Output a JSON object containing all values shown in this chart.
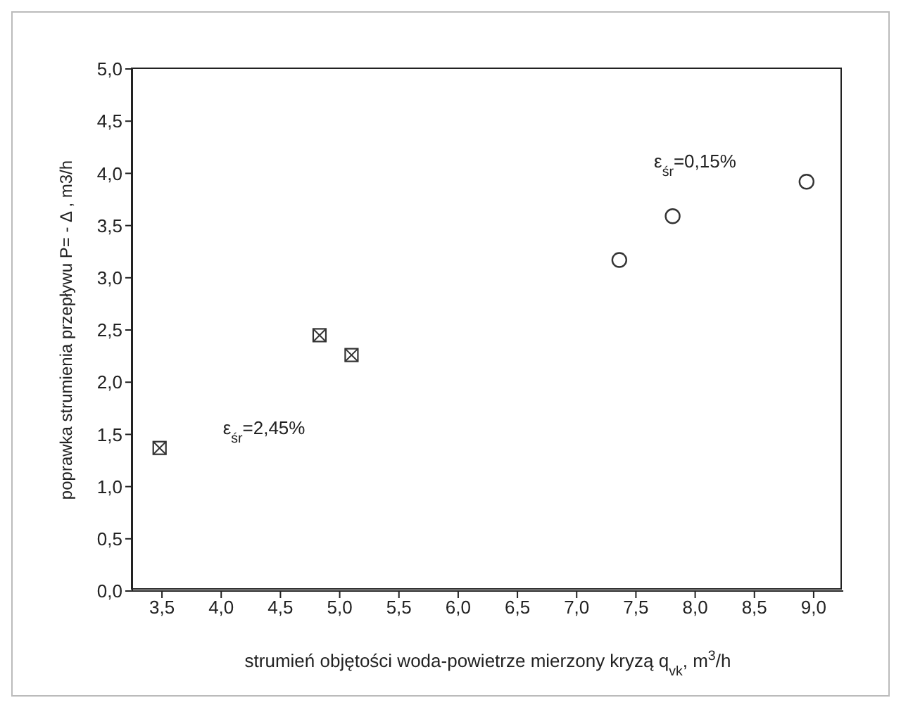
{
  "chart_data": {
    "type": "scatter",
    "xlabel": "strumień objętości woda-powietrze mierzony kryzą q$_{vk}$, m$^{3}$/h",
    "ylabel": "poprawka strumienia przepływu P= - Δ , m3/h",
    "series": [
      {
        "color": "#333333",
        "marker": "square",
        "x": [
          3.48,
          4.83,
          5.1
        ],
        "values": [
          1.37,
          2.45,
          2.26
        ]
      },
      {
        "color": "#333333",
        "marker": "circle",
        "x": [
          7.36,
          7.81,
          8.94
        ],
        "values": [
          3.17,
          3.59,
          3.92
        ]
      }
    ],
    "annotations": [
      "ε$_{śr}$=2,45%",
      "ε$_{śr}$=0,15%"
    ],
    "xlim": [
      3.25,
      9.25
    ],
    "xticks": [
      {
        "value": 3.5,
        "label": "3,5"
      },
      {
        "value": 4,
        "label": "4,0"
      },
      {
        "value": 4.5,
        "label": "4,5"
      },
      {
        "value": 5,
        "label": "5,0"
      },
      {
        "value": 5.5,
        "label": "5,5"
      },
      {
        "value": 6,
        "label": "6,0"
      },
      {
        "value": 6.5,
        "label": "6,5"
      },
      {
        "value": 7,
        "label": "7,0"
      },
      {
        "value": 7.5,
        "label": "7,5"
      },
      {
        "value": 8,
        "label": "8,0"
      },
      {
        "value": 8.5,
        "label": "8,5"
      },
      {
        "value": 9,
        "label": "9,0"
      }
    ],
    "ylim": [
      0,
      5
    ],
    "yticks": [
      {
        "value": 0,
        "label": "0,0"
      },
      {
        "value": 0.5,
        "label": "0,5"
      },
      {
        "value": 1,
        "label": "1,0"
      },
      {
        "value": 1.5,
        "label": "1,5"
      },
      {
        "value": 2,
        "label": "2,0"
      },
      {
        "value": 2.5,
        "label": "2,5"
      },
      {
        "value": 3,
        "label": "3,0"
      },
      {
        "value": 3.5,
        "label": "3,5"
      },
      {
        "value": 4,
        "label": "4,0"
      },
      {
        "value": 4.5,
        "label": "4,5"
      },
      {
        "value": 5,
        "label": "5,0"
      }
    ],
    "grid": false,
    "legend": false
  }
}
